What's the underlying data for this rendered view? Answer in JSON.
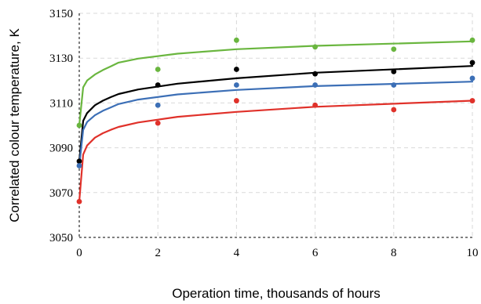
{
  "chart_data": {
    "type": "scatter",
    "title": "",
    "xlabel": "Operation time, thousands of hours",
    "ylabel": "Correlated colour temperature, K",
    "xlim": [
      0,
      10
    ],
    "ylim": [
      3050,
      3150
    ],
    "xticks": [
      0,
      2,
      4,
      6,
      8,
      10
    ],
    "yticks": [
      3050,
      3070,
      3090,
      3110,
      3130,
      3150
    ],
    "grid": true,
    "series": [
      {
        "color": "#6ab63f",
        "x": [
          0,
          2,
          4,
          6,
          8,
          10
        ],
        "y": [
          3100,
          3125,
          3138,
          3135,
          3134,
          3138
        ],
        "fit": [
          3100,
          3117,
          3120,
          3122.7,
          3124.7,
          3126.3,
          3128,
          3129.8,
          3132,
          3134,
          3135.5,
          3137.5
        ],
        "fit_x": [
          0,
          0.1,
          0.2,
          0.4,
          0.6,
          0.8,
          1,
          1.5,
          2.5,
          4,
          6,
          10
        ]
      },
      {
        "color": "#000000",
        "x": [
          0,
          2,
          4,
          6,
          8,
          10
        ],
        "y": [
          3084,
          3118,
          3125,
          3123,
          3124,
          3128
        ],
        "fit": [
          3084,
          3102,
          3105.5,
          3109,
          3111,
          3112.6,
          3114,
          3116,
          3118.6,
          3121,
          3123.5,
          3126.5
        ],
        "fit_x": [
          0,
          0.1,
          0.2,
          0.4,
          0.6,
          0.8,
          1,
          1.5,
          2.5,
          4,
          6,
          10
        ]
      },
      {
        "color": "#3c6fb6",
        "x": [
          0,
          2,
          4,
          6,
          8,
          10
        ],
        "y": [
          3082,
          3109,
          3118,
          3118,
          3118,
          3121
        ],
        "fit": [
          3082,
          3098,
          3101.5,
          3104.5,
          3106.5,
          3108,
          3109.5,
          3111.5,
          3113.8,
          3115.8,
          3117.5,
          3119.5
        ],
        "fit_x": [
          0,
          0.1,
          0.2,
          0.4,
          0.6,
          0.8,
          1,
          1.5,
          2.5,
          4,
          6,
          10
        ]
      },
      {
        "color": "#e0312a",
        "x": [
          0,
          2,
          4,
          6,
          8,
          10
        ],
        "y": [
          3066,
          3101,
          3111,
          3109,
          3107,
          3111
        ],
        "fit": [
          3066,
          3087,
          3091,
          3094.5,
          3096.5,
          3098,
          3099.3,
          3101.3,
          3103.8,
          3106,
          3108.3,
          3111
        ],
        "fit_x": [
          0,
          0.1,
          0.2,
          0.4,
          0.6,
          0.8,
          1,
          1.5,
          2.5,
          4,
          6,
          10
        ]
      }
    ]
  }
}
